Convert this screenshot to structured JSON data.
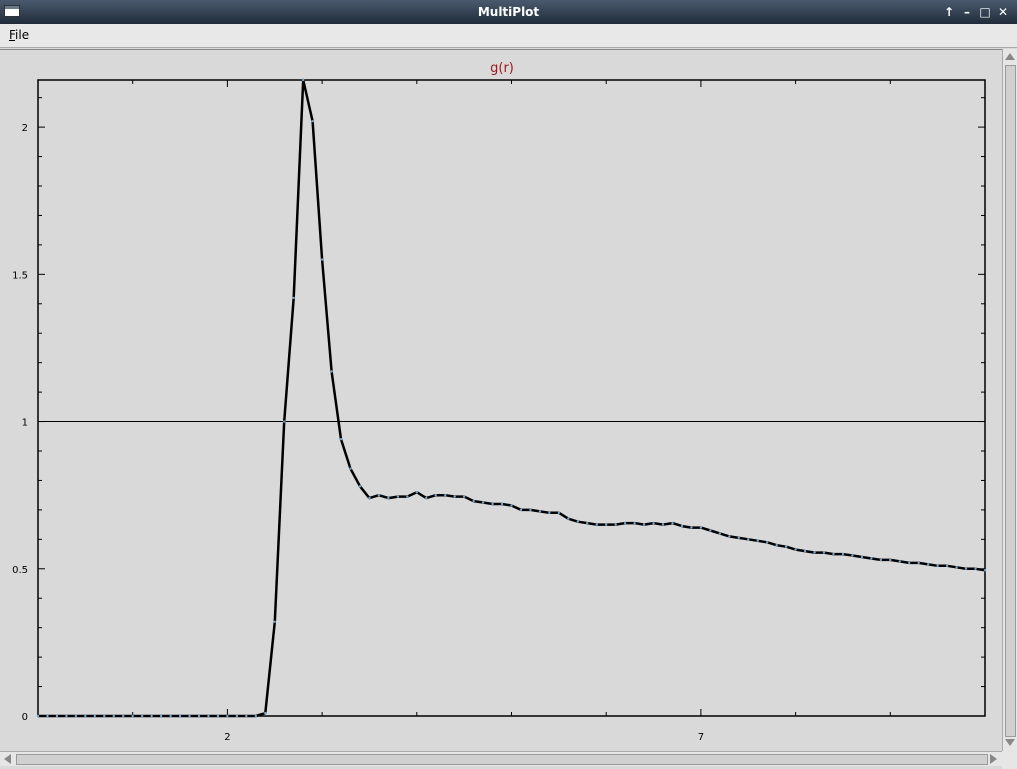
{
  "window": {
    "title": "MultiPlot",
    "controls": [
      "↑",
      "–",
      "□",
      "✕"
    ]
  },
  "menu": {
    "file_label": "File"
  },
  "chart_data": {
    "type": "line",
    "title": "g(r)",
    "xlabel": "",
    "ylabel": "",
    "xlim": [
      0,
      10
    ],
    "ylim": [
      0,
      2.16
    ],
    "xticks_labeled": [
      2,
      7
    ],
    "yticks_labeled": [
      0,
      0.5,
      1,
      1.5,
      2
    ],
    "reference_line_y": 1,
    "colors": {
      "line": "#000000",
      "points": "#6fa8d6",
      "title": "#a01818",
      "background": "#d9d9d9"
    },
    "series": [
      {
        "x": [
          0,
          0.1,
          0.2,
          0.3,
          0.4,
          0.5,
          0.6,
          0.7,
          0.8,
          0.9,
          1.0,
          1.1,
          1.2,
          1.3,
          1.4,
          1.5,
          1.6,
          1.7,
          1.8,
          1.9,
          2.0,
          2.1,
          2.2,
          2.3,
          2.4,
          2.5,
          2.6,
          2.7,
          2.8,
          2.9,
          3.0,
          3.1,
          3.2,
          3.3,
          3.4,
          3.5,
          3.6,
          3.7,
          3.8,
          3.9,
          4.0,
          4.1,
          4.2,
          4.3,
          4.4,
          4.5,
          4.6,
          4.7,
          4.8,
          4.9,
          5.0,
          5.1,
          5.2,
          5.3,
          5.4,
          5.5,
          5.6,
          5.7,
          5.8,
          5.9,
          6.0,
          6.1,
          6.2,
          6.3,
          6.4,
          6.5,
          6.6,
          6.7,
          6.8,
          6.9,
          7.0,
          7.1,
          7.2,
          7.3,
          7.4,
          7.5,
          7.6,
          7.7,
          7.8,
          7.9,
          8.0,
          8.1,
          8.2,
          8.3,
          8.4,
          8.5,
          8.6,
          8.7,
          8.8,
          8.9,
          9.0,
          9.1,
          9.2,
          9.3,
          9.4,
          9.5,
          9.6,
          9.7,
          9.8,
          9.9,
          10.0
        ],
        "y": [
          0,
          0,
          0,
          0,
          0,
          0,
          0,
          0,
          0,
          0,
          0,
          0,
          0,
          0,
          0,
          0,
          0,
          0,
          0,
          0,
          0,
          0,
          0,
          0,
          0.01,
          0.32,
          1.0,
          1.42,
          2.16,
          2.02,
          1.55,
          1.17,
          0.94,
          0.84,
          0.78,
          0.74,
          0.75,
          0.74,
          0.745,
          0.745,
          0.76,
          0.74,
          0.75,
          0.75,
          0.745,
          0.745,
          0.73,
          0.725,
          0.72,
          0.72,
          0.715,
          0.7,
          0.7,
          0.695,
          0.69,
          0.69,
          0.67,
          0.66,
          0.655,
          0.65,
          0.65,
          0.65,
          0.655,
          0.655,
          0.65,
          0.655,
          0.65,
          0.655,
          0.645,
          0.64,
          0.64,
          0.63,
          0.62,
          0.61,
          0.605,
          0.6,
          0.595,
          0.59,
          0.58,
          0.575,
          0.565,
          0.56,
          0.555,
          0.555,
          0.55,
          0.55,
          0.545,
          0.54,
          0.535,
          0.53,
          0.53,
          0.525,
          0.52,
          0.52,
          0.515,
          0.51,
          0.51,
          0.505,
          0.5,
          0.5,
          0.495
        ]
      }
    ]
  }
}
